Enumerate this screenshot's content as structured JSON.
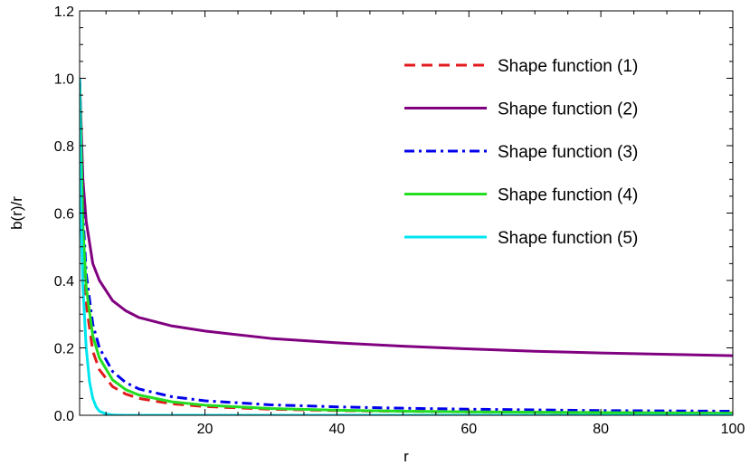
{
  "chart_data": {
    "type": "line",
    "xlabel": "r",
    "ylabel": "b(r)/r",
    "xlim": [
      1,
      100
    ],
    "ylim": [
      0,
      1.2
    ],
    "x_ticks": [
      20,
      40,
      60,
      80,
      100
    ],
    "x_tick_labels": [
      "20",
      "40",
      "60",
      "80",
      "100"
    ],
    "y_ticks": [
      0,
      0.2,
      0.4,
      0.6,
      0.8,
      1.0,
      1.2
    ],
    "y_tick_labels": [
      "0.0",
      "0.2",
      "0.4",
      "0.6",
      "0.8",
      "1.0",
      "1.2"
    ],
    "grid": false,
    "legend_position": "top-right",
    "series": [
      {
        "name": "Shape function (1)",
        "color": "#e31a1c",
        "style": "dashed",
        "x": [
          1,
          1.5,
          2,
          3,
          4,
          6,
          8,
          10,
          15,
          20,
          30,
          40,
          50,
          60,
          70,
          80,
          90,
          100
        ],
        "y": [
          1.0,
          0.51,
          0.33,
          0.19,
          0.135,
          0.085,
          0.063,
          0.05,
          0.034,
          0.026,
          0.018,
          0.014,
          0.012,
          0.01,
          0.009,
          0.008,
          0.007,
          0.007
        ]
      },
      {
        "name": "Shape function (2)",
        "color": "#800080",
        "style": "solid",
        "x": [
          1,
          1.5,
          2,
          3,
          4,
          6,
          8,
          10,
          15,
          20,
          30,
          40,
          50,
          60,
          70,
          80,
          90,
          100
        ],
        "y": [
          1.0,
          0.7,
          0.575,
          0.45,
          0.4,
          0.34,
          0.31,
          0.29,
          0.265,
          0.25,
          0.228,
          0.215,
          0.205,
          0.197,
          0.19,
          0.185,
          0.181,
          0.177
        ]
      },
      {
        "name": "Shape function (3)",
        "color": "#0000ee",
        "style": "dashdot",
        "x": [
          1,
          1.5,
          2,
          3,
          4,
          6,
          8,
          10,
          15,
          20,
          30,
          40,
          50,
          60,
          70,
          80,
          90,
          100
        ],
        "y": [
          1.0,
          0.6,
          0.42,
          0.27,
          0.2,
          0.13,
          0.097,
          0.078,
          0.055,
          0.043,
          0.031,
          0.025,
          0.021,
          0.018,
          0.016,
          0.014,
          0.013,
          0.012
        ]
      },
      {
        "name": "Shape function (4)",
        "color": "#22dd22",
        "style": "solid",
        "x": [
          1,
          1.5,
          2,
          3,
          4,
          6,
          8,
          10,
          15,
          20,
          30,
          40,
          50,
          60,
          70,
          80,
          90,
          100
        ],
        "y": [
          1.0,
          0.56,
          0.38,
          0.235,
          0.17,
          0.105,
          0.076,
          0.06,
          0.04,
          0.03,
          0.02,
          0.015,
          0.012,
          0.01,
          0.009,
          0.008,
          0.007,
          0.006
        ]
      },
      {
        "name": "Shape function (5)",
        "color": "#00e5ee",
        "style": "solid",
        "x": [
          1,
          1.2,
          1.5,
          2,
          2.5,
          3,
          3.5,
          4,
          5,
          6,
          8,
          10,
          20,
          40,
          60,
          80,
          100
        ],
        "y": [
          1.0,
          0.6,
          0.38,
          0.2,
          0.1,
          0.05,
          0.025,
          0.012,
          0.004,
          0.001,
          0.0,
          0.0,
          0.0,
          0.0,
          0.0,
          0.0,
          0.0
        ]
      }
    ]
  }
}
